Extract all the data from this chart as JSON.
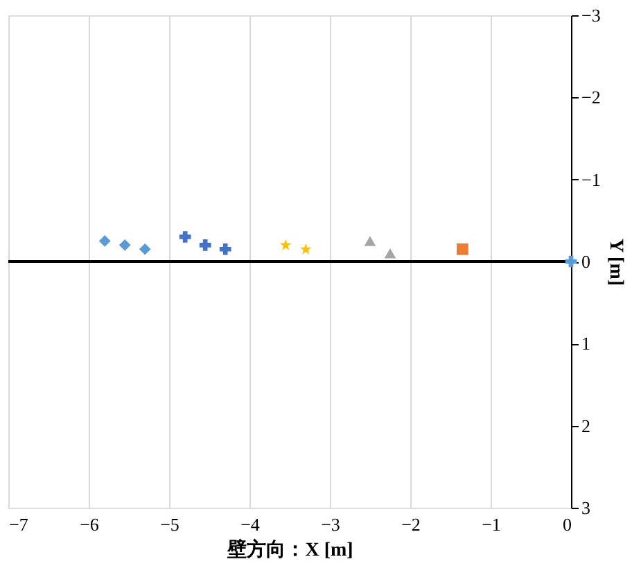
{
  "chart_data": {
    "type": "scatter",
    "xlabel": "壁方向：X [m]",
    "ylabel": "Y [m]",
    "xlim": [
      -7,
      0
    ],
    "ylim": [
      3,
      -3
    ],
    "xticks": [
      -7,
      -6,
      -5,
      -4,
      -3,
      -2,
      -1,
      0
    ],
    "yticks": [
      -3,
      -2,
      -1,
      0,
      1,
      2,
      3
    ],
    "grid": "x",
    "ref_lines": [
      {
        "axis": "y",
        "value": 0,
        "color": "#000000"
      }
    ],
    "series": [
      {
        "color": "#5b9bd5",
        "marker": "diamond",
        "x": [
          -5.8,
          -5.55,
          -5.3
        ],
        "values": [
          -0.25,
          -0.2,
          -0.15
        ]
      },
      {
        "color": "#4472c4",
        "marker": "cross",
        "x": [
          -4.8,
          -4.55,
          -4.3
        ],
        "values": [
          -0.3,
          -0.2,
          -0.15
        ]
      },
      {
        "color": "#ffc000",
        "marker": "star",
        "x": [
          -3.55,
          -3.3
        ],
        "values": [
          -0.2,
          -0.15
        ]
      },
      {
        "color": "#a5a5a5",
        "marker": "triangle",
        "x": [
          -2.5,
          -2.25
        ],
        "values": [
          -0.25,
          -0.1
        ]
      },
      {
        "color": "#ed7d31",
        "marker": "square",
        "x": [
          -1.35
        ],
        "values": [
          -0.15
        ]
      },
      {
        "color": "#5b9bd5",
        "marker": "cross",
        "x": [
          0
        ],
        "values": [
          0
        ]
      }
    ]
  }
}
